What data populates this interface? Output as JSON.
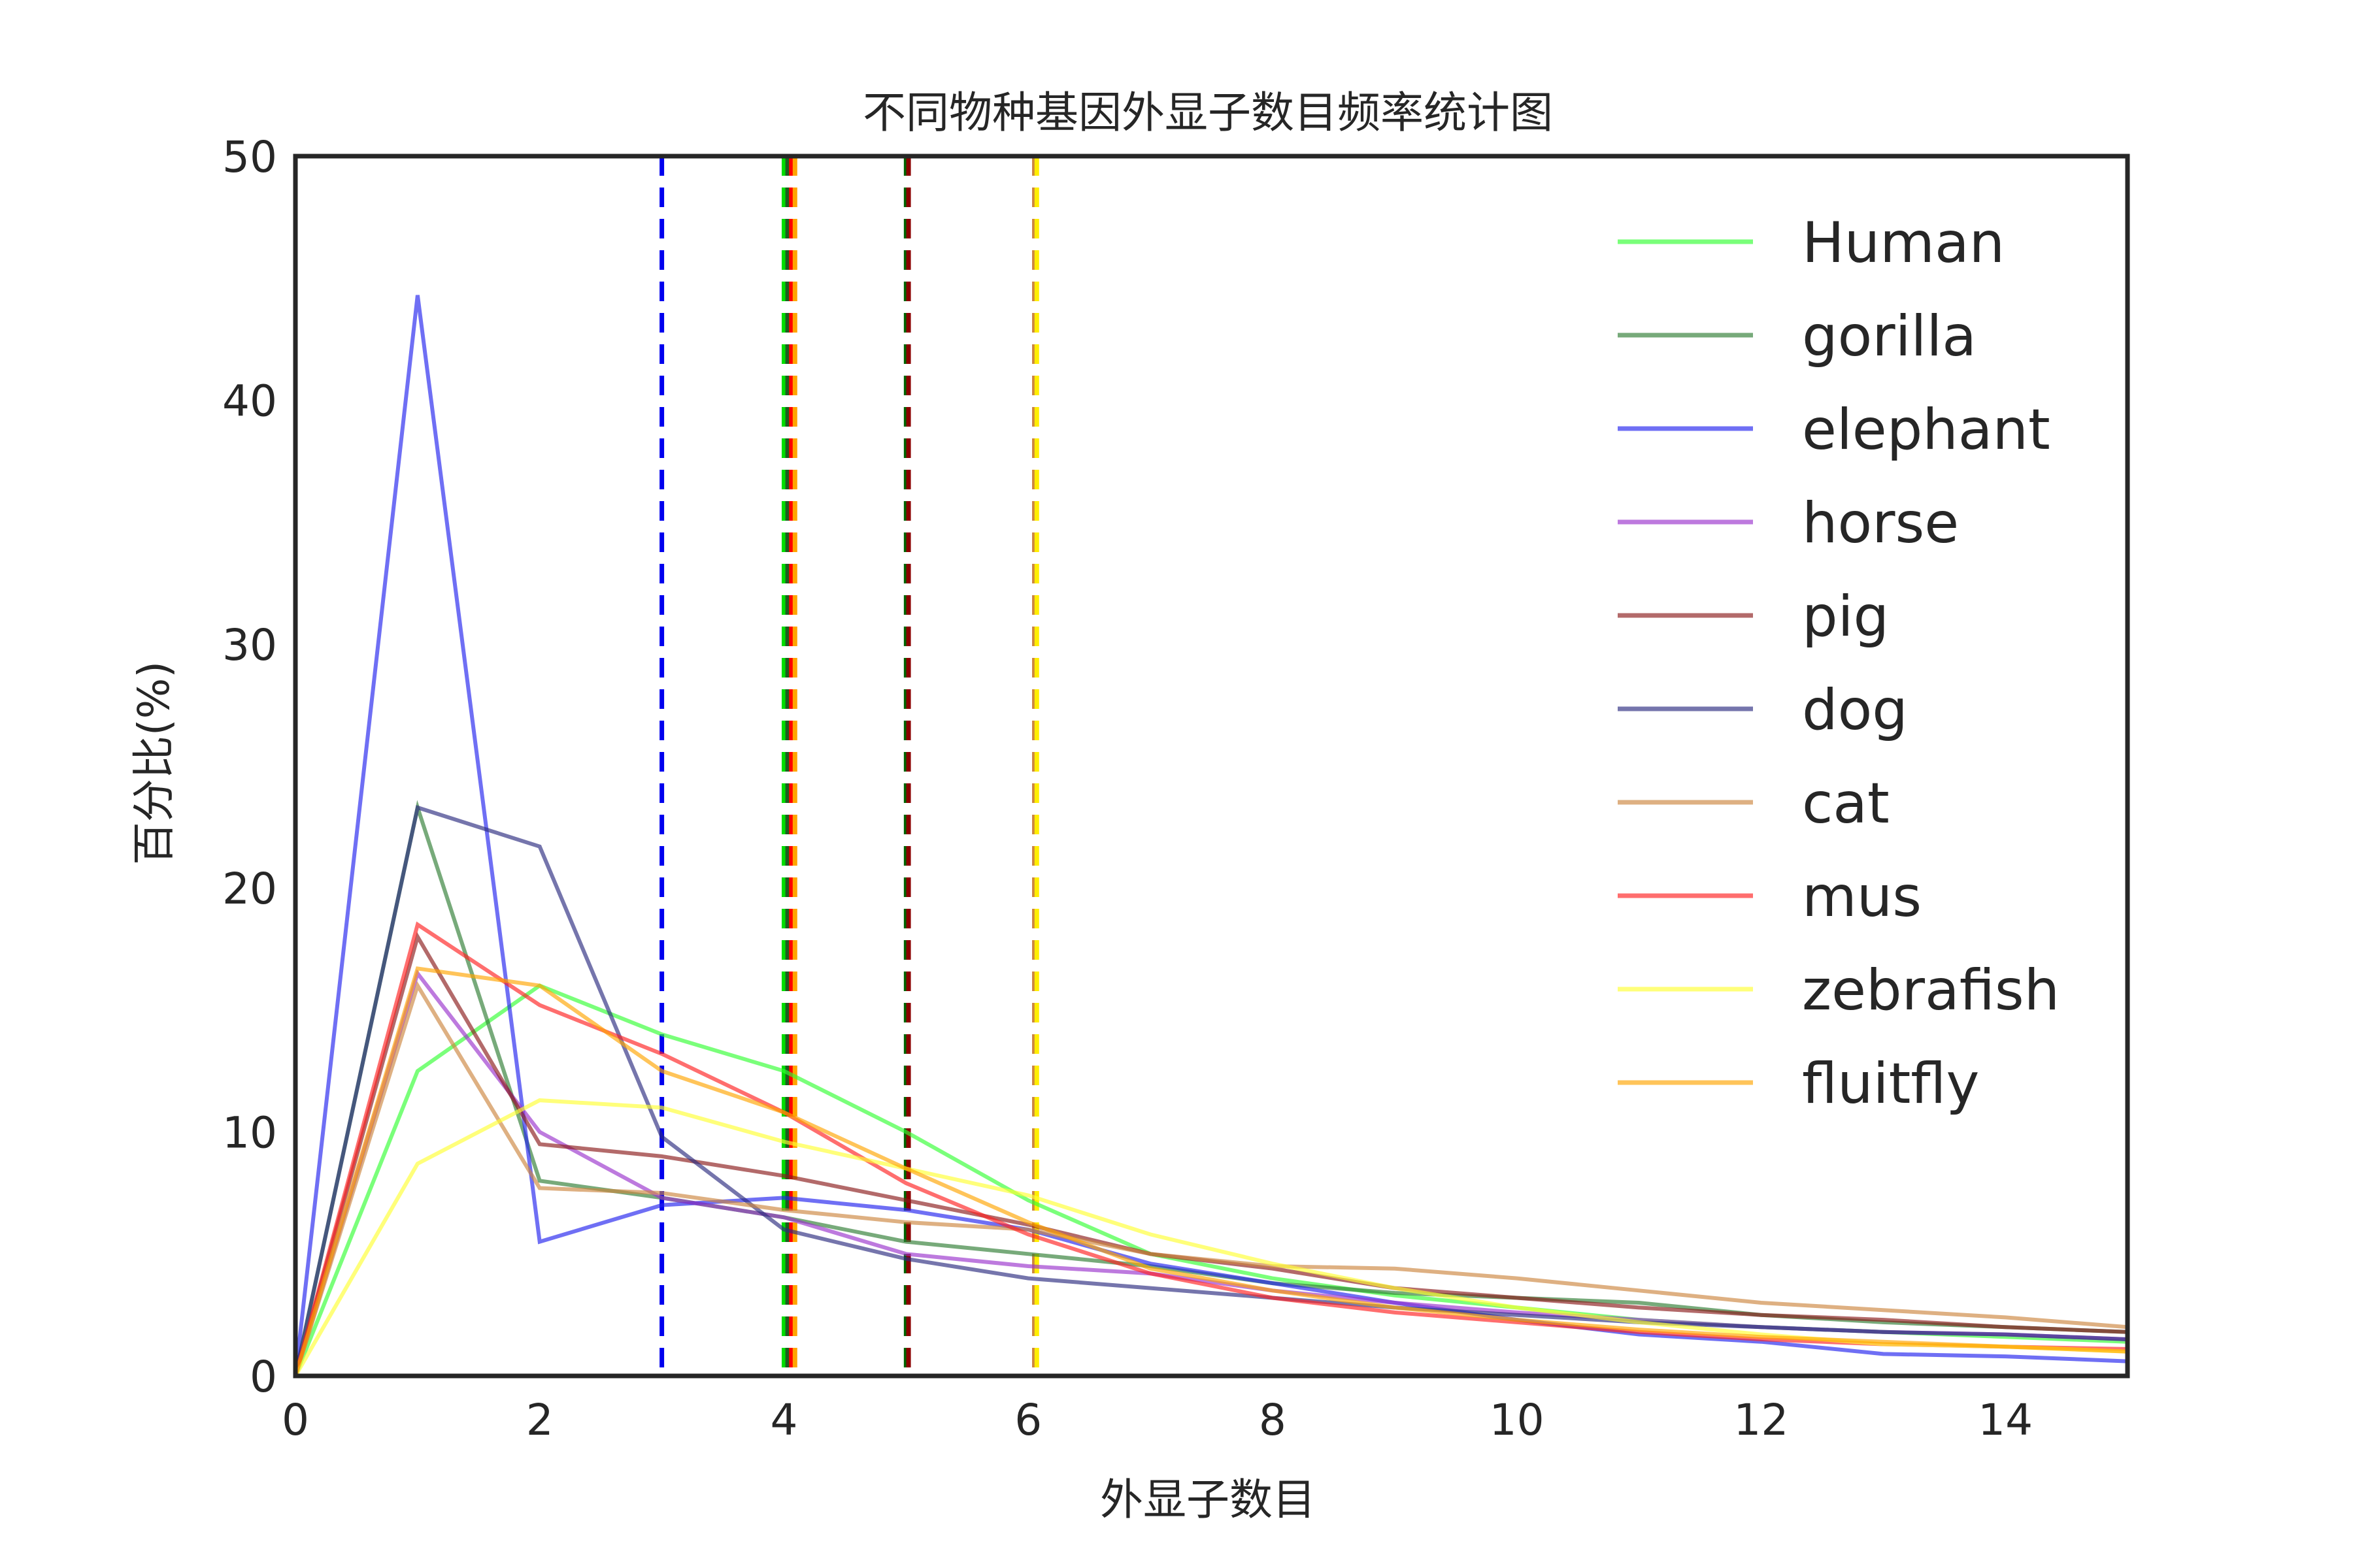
{
  "chart_data": {
    "type": "line",
    "title": "不同物种基因外显子数目频率统计图",
    "xlabel": "外显子数目",
    "ylabel": "百分比(%)",
    "xlim": [
      0,
      15
    ],
    "ylim": [
      0,
      50
    ],
    "xticks": [
      0,
      2,
      4,
      6,
      8,
      10,
      12,
      14
    ],
    "yticks": [
      0,
      10,
      20,
      30,
      40,
      50
    ],
    "grid": false,
    "legend_position": "top-right",
    "x": [
      0,
      1,
      2,
      3,
      4,
      5,
      6,
      7,
      8,
      9,
      10,
      11,
      12,
      13,
      14,
      15
    ],
    "series": [
      {
        "name": "Human",
        "color": "#33ff33",
        "values": [
          0,
          12.5,
          16,
          14,
          12.5,
          10,
          7.2,
          5,
          4,
          3.3,
          2.8,
          2.3,
          2,
          1.8,
          1.6,
          1.4
        ]
      },
      {
        "name": "gorilla",
        "color": "#2e7d32",
        "values": [
          0,
          23.3,
          8.0,
          7.3,
          6.5,
          5.5,
          5.0,
          4.5,
          3.8,
          3.4,
          3.2,
          3.0,
          2.5,
          2.2,
          2.0,
          1.8
        ]
      },
      {
        "name": "elephant",
        "color": "#2222ee",
        "values": [
          0,
          44.3,
          5.5,
          7.0,
          7.3,
          6.8,
          6.0,
          4.6,
          3.8,
          3.0,
          2.3,
          1.7,
          1.4,
          0.9,
          0.8,
          0.6
        ]
      },
      {
        "name": "horse",
        "color": "#9932cc",
        "values": [
          0,
          16.5,
          10.0,
          7.3,
          6.5,
          5.0,
          4.5,
          4.2,
          3.5,
          3.0,
          2.6,
          2.3,
          2.0,
          1.8,
          1.7,
          1.5
        ]
      },
      {
        "name": "pig",
        "color": "#8b1a1a",
        "values": [
          0,
          18.0,
          9.5,
          9.0,
          8.2,
          7.2,
          6.2,
          5.0,
          4.4,
          3.6,
          3.2,
          2.8,
          2.5,
          2.3,
          2.0,
          1.8
        ]
      },
      {
        "name": "dog",
        "color": "#2b2b80",
        "values": [
          0,
          23.3,
          21.7,
          9.8,
          6.0,
          4.8,
          4.0,
          3.6,
          3.2,
          2.8,
          2.5,
          2.2,
          2.0,
          1.8,
          1.7,
          1.5
        ]
      },
      {
        "name": "cat",
        "color": "#cd853f",
        "values": [
          0,
          16.0,
          7.7,
          7.5,
          6.8,
          6.3,
          6.0,
          5.0,
          4.5,
          4.4,
          4.0,
          3.5,
          3.0,
          2.7,
          2.4,
          2.0
        ]
      },
      {
        "name": "mus",
        "color": "#ff2020",
        "values": [
          0,
          18.5,
          15.2,
          13.2,
          10.8,
          7.9,
          5.8,
          4.2,
          3.2,
          2.6,
          2.2,
          1.8,
          1.5,
          1.3,
          1.2,
          1.1
        ]
      },
      {
        "name": "zebrafish",
        "color": "#ffff33",
        "values": [
          0,
          8.7,
          11.3,
          11.0,
          9.6,
          8.5,
          7.4,
          5.8,
          4.6,
          3.6,
          2.8,
          2.2,
          1.7,
          1.3,
          1.2,
          1.0
        ]
      },
      {
        "name": "fluitfly",
        "color": "#ffa500",
        "values": [
          0,
          16.7,
          16.0,
          12.5,
          10.8,
          8.5,
          6.3,
          4.4,
          3.5,
          2.8,
          2.3,
          1.9,
          1.6,
          1.4,
          1.2,
          1.0
        ]
      }
    ],
    "vertical_lines": [
      {
        "x": 3,
        "color": "#0000ee",
        "style": "dashed"
      },
      {
        "x": 4,
        "color": "#00dd00",
        "style": "dashed"
      },
      {
        "x": 4.03,
        "color": "#1b5e20",
        "style": "dashed"
      },
      {
        "x": 4.06,
        "color": "#ff0000",
        "style": "dashed"
      },
      {
        "x": 4.09,
        "color": "#ffa500",
        "style": "dashed"
      },
      {
        "x": 5,
        "color": "#006400",
        "style": "dashed"
      },
      {
        "x": 5.02,
        "color": "#8b0000",
        "style": "dashed"
      },
      {
        "x": 6.05,
        "color": "#cd853f",
        "style": "dashed"
      },
      {
        "x": 6.07,
        "color": "#ffee00",
        "style": "dashed"
      }
    ]
  }
}
